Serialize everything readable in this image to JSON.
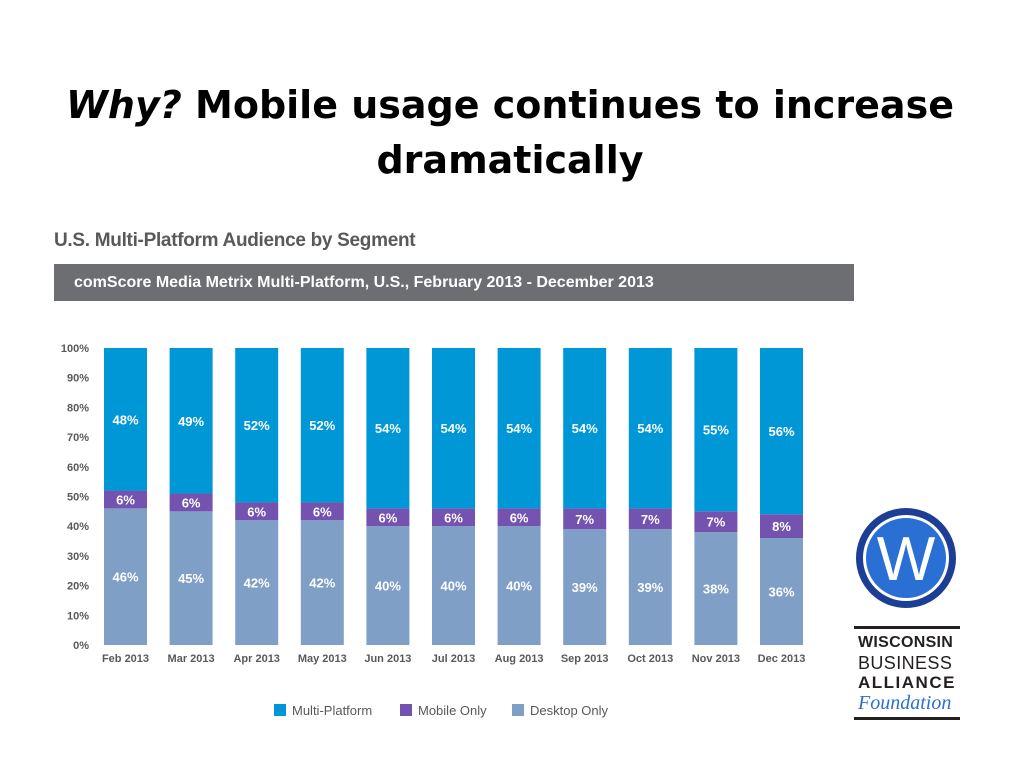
{
  "slide": {
    "title_italic": "Why?",
    "title_rest": " Mobile usage continues to increase dramatically"
  },
  "chart_heading": "U.S. Multi-Platform Audience by Segment",
  "source_bar": "comScore Media Metrix Multi-Platform, U.S., February 2013 - December 2013",
  "logo": {
    "line1": "WISCONSIN",
    "line2": "BUSINESS",
    "line3": "ALLIANCE",
    "line4": "Foundation",
    "letter": "W"
  },
  "colors": {
    "multi_platform": "#0097d6",
    "mobile_only": "#7452b0",
    "desktop_only": "#7f9fc6",
    "source_bar": "#6d6e71",
    "heading": "#58595b"
  },
  "chart_data": {
    "type": "bar",
    "stacked": true,
    "categories": [
      "Feb 2013",
      "Mar 2013",
      "Apr 2013",
      "May 2013",
      "Jun 2013",
      "Jul 2013",
      "Aug 2013",
      "Sep 2013",
      "Oct 2013",
      "Nov 2013",
      "Dec 2013"
    ],
    "series": [
      {
        "name": "Desktop Only",
        "values": [
          46,
          45,
          42,
          42,
          40,
          40,
          40,
          39,
          39,
          38,
          36
        ]
      },
      {
        "name": "Mobile Only",
        "values": [
          6,
          6,
          6,
          6,
          6,
          6,
          6,
          7,
          7,
          7,
          8
        ]
      },
      {
        "name": "Multi-Platform",
        "values": [
          48,
          49,
          52,
          52,
          54,
          54,
          54,
          54,
          54,
          55,
          56
        ]
      }
    ],
    "ylim": [
      0,
      100
    ],
    "yticks": [
      "0%",
      "10%",
      "20%",
      "30%",
      "40%",
      "50%",
      "60%",
      "70%",
      "80%",
      "90%",
      "100%"
    ],
    "legend": [
      "Multi-Platform",
      "Mobile Only",
      "Desktop Only"
    ],
    "legend_position": "bottom",
    "grid": false
  }
}
